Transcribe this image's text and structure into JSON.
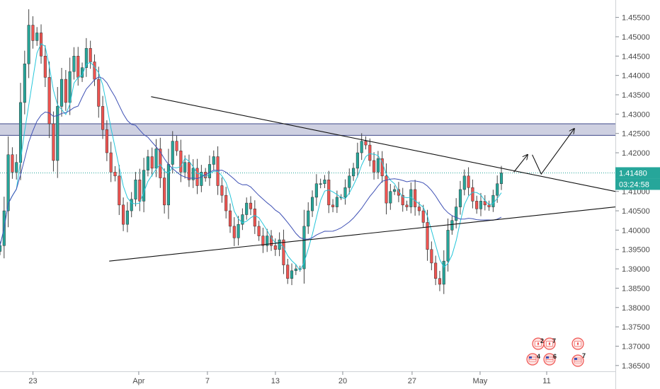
{
  "chart_data": {
    "type": "candlestick",
    "y_axis_ticks": [
      "1.45500",
      "1.45000",
      "1.44500",
      "1.44000",
      "1.43500",
      "1.43000",
      "1.42500",
      "1.42000",
      "1.41500",
      "1.41000",
      "1.40500",
      "1.40000",
      "1.39500",
      "1.39000",
      "1.38500",
      "1.38000",
      "1.37500",
      "1.37000",
      "1.36500"
    ],
    "ylim": [
      1.3635,
      1.4595
    ],
    "x_axis_ticks": [
      {
        "label": "23",
        "t": 10
      },
      {
        "label": "Apr",
        "t": 25.4
      },
      {
        "label": "7",
        "t": 35.4
      },
      {
        "label": "13",
        "t": 45.3
      },
      {
        "label": "20",
        "t": 55.1
      },
      {
        "label": "27",
        "t": 65.2
      },
      {
        "label": "May",
        "t": 75.1
      },
      {
        "label": "11",
        "t": 84.8
      }
    ],
    "xlim": [
      5.2,
      94.8
    ],
    "last_price": "1.41480",
    "last_price_value": 1.4148,
    "countdown": "03:24:58",
    "resistance_zone": [
      1.4245,
      1.4275
    ],
    "current_price_line": 1.4148,
    "series": [
      {
        "name": "",
        "kind": "ohlc",
        "color_up": "#26a69a",
        "color_down": "#ef5350",
        "closes": [
          1.396,
          1.405,
          1.4195,
          1.415,
          1.4175,
          1.433,
          1.443,
          1.453,
          1.449,
          1.451,
          1.445,
          1.4395,
          1.4275,
          1.418,
          1.432,
          1.439,
          1.433,
          1.441,
          1.445,
          1.4395,
          1.442,
          1.447,
          1.4435,
          1.439,
          1.432,
          1.426,
          1.42,
          1.415,
          1.414,
          1.4065,
          1.4015,
          1.405,
          1.408,
          1.413,
          1.4075,
          1.4155,
          1.419,
          1.416,
          1.421,
          1.4135,
          1.4065,
          1.417,
          1.423,
          1.4205,
          1.415,
          1.4175,
          1.413,
          1.416,
          1.4115,
          1.415,
          1.4135,
          1.417,
          1.419,
          1.4115,
          1.409,
          1.405,
          1.401,
          1.398,
          1.4015,
          1.404,
          1.407,
          1.4055,
          1.401,
          1.3985,
          1.396,
          1.3985,
          1.396,
          1.395,
          1.3975,
          1.391,
          1.3875,
          1.3895,
          1.39,
          1.39,
          1.401,
          1.405,
          1.4085,
          1.412,
          1.412,
          1.413,
          1.4065,
          1.406,
          1.4085,
          1.4085,
          1.411,
          1.414,
          1.416,
          1.42,
          1.423,
          1.422,
          1.418,
          1.415,
          1.4185,
          1.414,
          1.407,
          1.41,
          1.4105,
          1.409,
          1.4065,
          1.406,
          1.4105,
          1.406,
          1.405,
          1.402,
          1.395,
          1.3915,
          1.3875,
          1.386,
          1.392,
          1.4,
          1.4025,
          1.406,
          1.4105,
          1.414,
          1.411,
          1.4075,
          1.4055,
          1.4075,
          1.4065,
          1.406,
          1.409,
          1.412,
          1.4148
        ]
      },
      {
        "name": "",
        "kind": "ma_fast",
        "color": "#26c6da"
      },
      {
        "name": "",
        "kind": "ma_slow",
        "color": "#3f51b5"
      }
    ],
    "lines": [
      {
        "from": [
          27.2,
          1.4345
        ],
        "to": [
          94.8,
          1.41
        ]
      },
      {
        "from": [
          21.1,
          1.392
        ],
        "to": [
          94.8,
          1.406
        ]
      }
    ],
    "arrows": [
      [
        [
          80.0,
          1.415
        ],
        [
          82.0,
          1.4195
        ]
      ],
      [
        [
          82.7,
          1.4195
        ],
        [
          84.0,
          1.4145
        ],
        [
          88.8,
          1.4262
        ]
      ]
    ]
  },
  "calendar": {
    "group1": {
      "top_left": "2",
      "top_right": "7",
      "bottom_left": "4",
      "bottom_right": "6"
    },
    "group2": {
      "top": "",
      "bottom": "7"
    }
  }
}
